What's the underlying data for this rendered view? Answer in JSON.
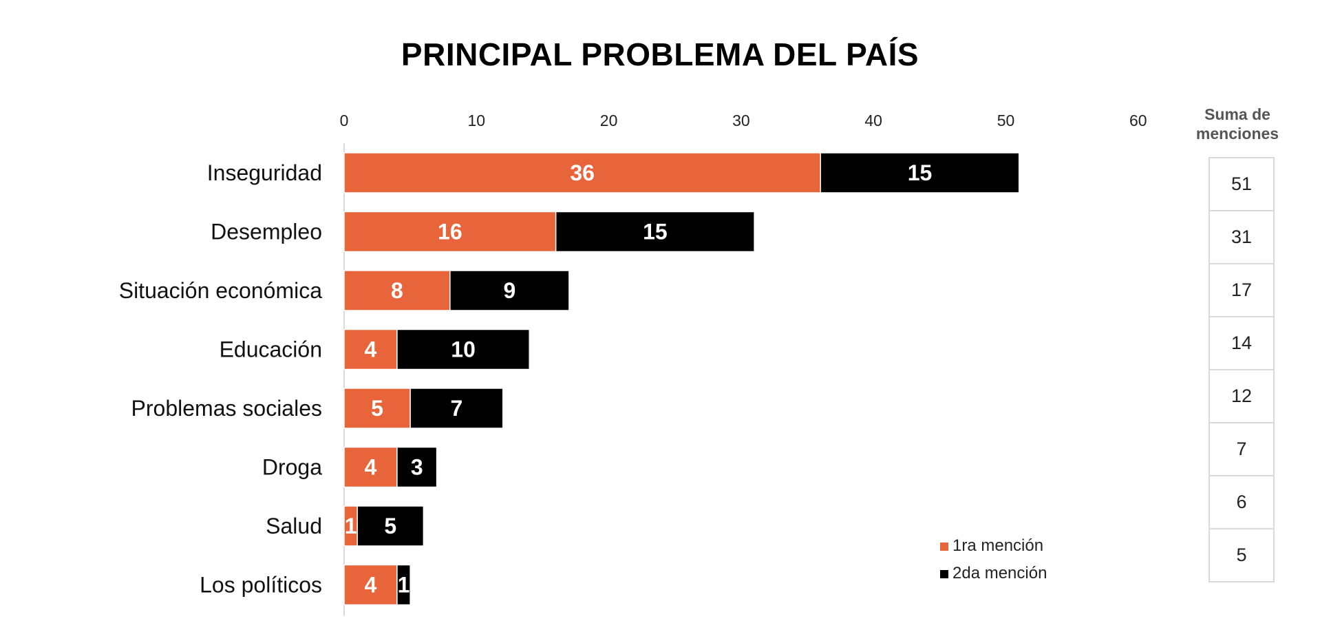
{
  "chart_data": {
    "type": "bar",
    "orientation": "horizontal",
    "stacked": true,
    "title": "PRINCIPAL PROBLEMA DEL PAÍS",
    "categories": [
      "Inseguridad",
      "Desempleo",
      "Situación económica",
      "Educación",
      "Problemas sociales",
      "Droga",
      "Salud",
      "Los políticos"
    ],
    "series": [
      {
        "name": "1ra mención",
        "color": "#E8643A",
        "values": [
          36,
          16,
          8,
          4,
          5,
          4,
          1,
          4
        ]
      },
      {
        "name": "2da mención",
        "color": "#000000",
        "values": [
          15,
          15,
          9,
          10,
          7,
          3,
          5,
          1
        ]
      }
    ],
    "xlim": [
      0,
      60
    ],
    "x_ticks": [
      "0",
      "10",
      "20",
      "30",
      "40",
      "50",
      "60"
    ],
    "grid": false,
    "legend_position": "bottom-right",
    "totals_header": "Suma de menciones",
    "totals": [
      "51",
      "31",
      "17",
      "14",
      "12",
      "7",
      "6",
      "5"
    ]
  }
}
